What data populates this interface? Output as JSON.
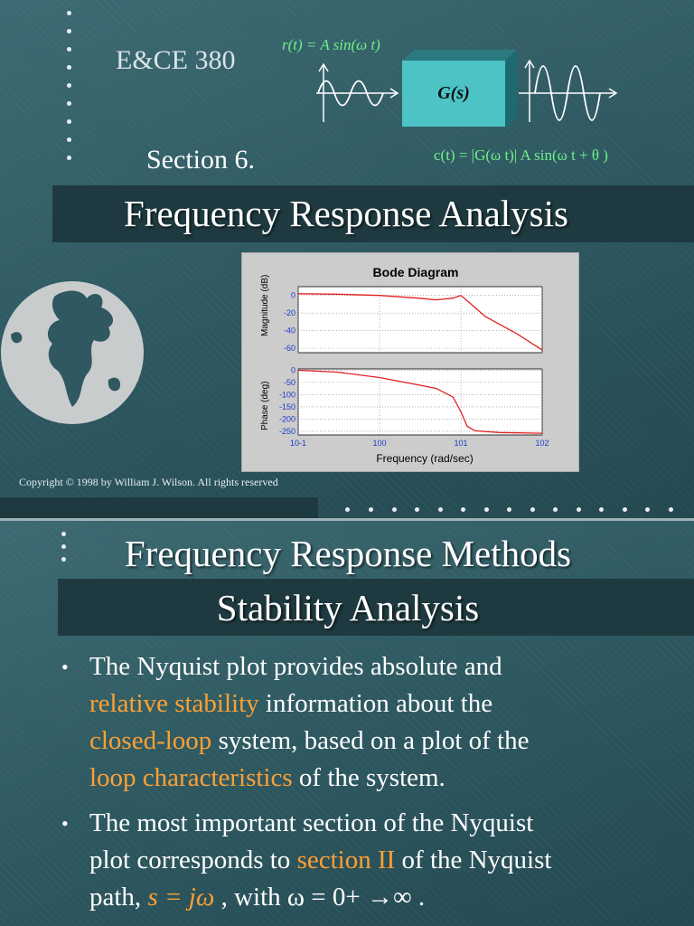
{
  "slide1": {
    "course": "E&CE 380",
    "section": "Section 6.",
    "title": "Frequency Response Analysis",
    "input_equation": "r(t) = A sin(ω t)",
    "block_label": "G(s)",
    "output_equation": "c(t) = |G(ω t)| A sin(ω t + θ )",
    "copyright": "Copyright © 1998 by William J. Wilson.  All rights reserved",
    "bode": {
      "title": "Bode Diagram",
      "ylabel_top": "Magnitude (dB)",
      "ylabel_bottom": "Phase (deg)",
      "xlabel": "Frequency (rad/sec)",
      "mag_ticks": [
        "0",
        "-20",
        "-40",
        "-60"
      ],
      "phase_ticks": [
        "0",
        "-50",
        "-100",
        "-150",
        "-200",
        "-250"
      ],
      "x_ticks": [
        "10-1",
        "100",
        "101",
        "102"
      ]
    }
  },
  "chart_data": [
    {
      "type": "line",
      "title": "Bode Diagram",
      "xlabel": "Frequency (rad/sec)",
      "ylabel": "Magnitude (dB)",
      "xscale": "log",
      "xlim": [
        0.1,
        100
      ],
      "ylim": [
        -65,
        10
      ],
      "grid": true,
      "x": [
        0.1,
        0.3,
        1,
        3,
        5,
        8,
        10,
        12,
        20,
        50,
        100
      ],
      "y": [
        2,
        1.5,
        0,
        -3,
        -5,
        -3,
        0,
        -6,
        -24,
        -44,
        -62
      ]
    },
    {
      "type": "line",
      "title": "",
      "xlabel": "Frequency (rad/sec)",
      "ylabel": "Phase (deg)",
      "xscale": "log",
      "xlim": [
        0.1,
        100
      ],
      "ylim": [
        -265,
        5
      ],
      "grid": true,
      "x": [
        0.1,
        0.3,
        1,
        3,
        5,
        8,
        10,
        12,
        15,
        30,
        100
      ],
      "y": [
        0,
        -8,
        -30,
        -60,
        -75,
        -110,
        -170,
        -230,
        -248,
        -255,
        -258
      ]
    }
  ],
  "slide2": {
    "title_line1": "Frequency Response Methods",
    "title_line2": "Stability Analysis",
    "bullet1": {
      "t1": "The Nyquist plot provides absolute and",
      "h1": "relative stability",
      "t2": "information about the",
      "h2": "closed-loop",
      "t3": "system, based on a plot of the",
      "h3": "loop characteristics",
      "t4": "of the system."
    },
    "bullet2": {
      "t1": "The most important section of the Nyquist",
      "t2": "plot corresponds to",
      "h1": "section II",
      "t3": "of the Nyquist",
      "t4": "path,",
      "h2": "s = jω",
      "t5": ", with",
      "t6": "ω = 0+ →∞  ."
    }
  },
  "colors": {
    "highlight": "#ffa033",
    "equation": "#6ef08a",
    "curve": "#e02020"
  },
  "icons": [
    "globe-icon",
    "bullet-icon",
    "arrow-icon"
  ]
}
